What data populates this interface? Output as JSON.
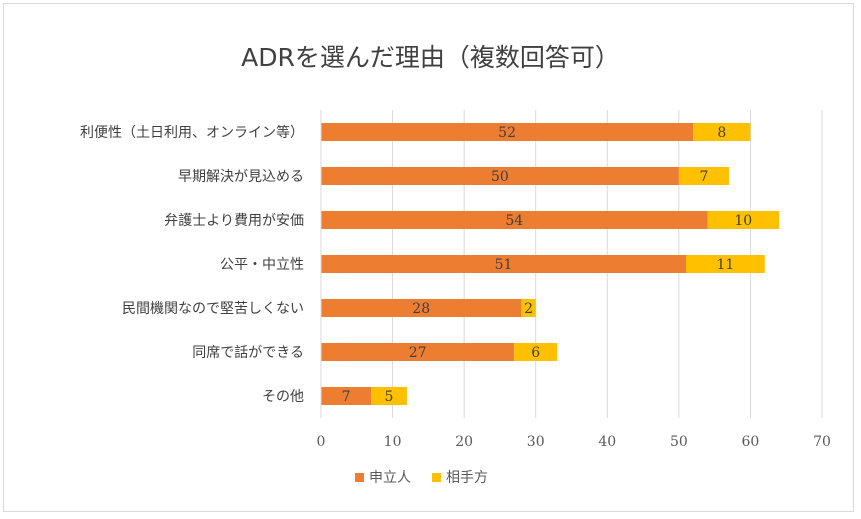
{
  "chart_data": {
    "type": "bar",
    "orientation": "horizontal",
    "stacked": true,
    "title": "ADRを選んだ理由（複数回答可）",
    "categories": [
      "利便性（土日利用、オンライン等）",
      "早期解決が見込める",
      "弁護士より費用が安価",
      "公平・中立性",
      "民間機関なので堅苦しくない",
      "同席で話ができる",
      "その他"
    ],
    "series": [
      {
        "name": "申立人",
        "color": "#ED7D31",
        "values": [
          52,
          50,
          54,
          51,
          28,
          27,
          7
        ]
      },
      {
        "name": "相手方",
        "color": "#FFC000",
        "values": [
          8,
          7,
          10,
          11,
          2,
          6,
          5
        ]
      }
    ],
    "xlim": [
      0,
      70
    ],
    "xticks": [
      0,
      10,
      20,
      30,
      40,
      50,
      60,
      70
    ],
    "grid": true,
    "legend": "bottom"
  }
}
